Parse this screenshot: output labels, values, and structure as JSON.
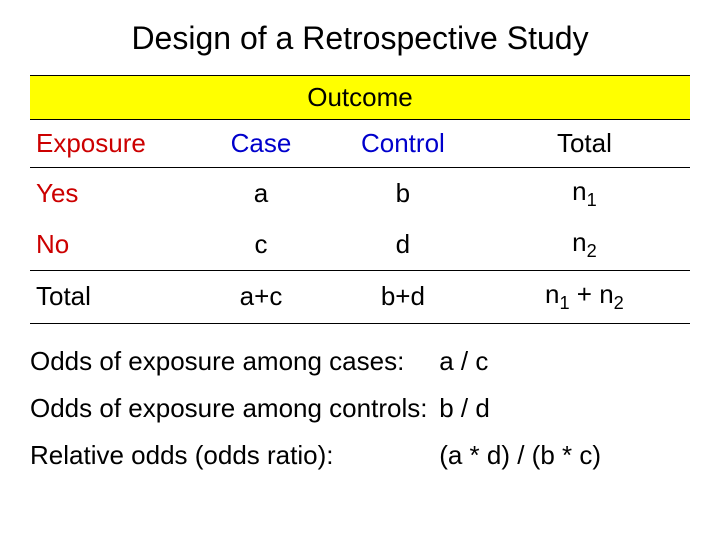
{
  "title": "Design of a Retrospective Study",
  "outcome_header": "Outcome",
  "headers": {
    "exposure": "Exposure",
    "case": "Case",
    "control": "Control",
    "total": "Total"
  },
  "rows": {
    "yes": {
      "label": "Yes",
      "case": "a",
      "control": "b",
      "total_base": "n",
      "total_sub": "1"
    },
    "no": {
      "label": "No",
      "case": "c",
      "control": "d",
      "total_base": "n",
      "total_sub": "2"
    }
  },
  "totals": {
    "label": "Total",
    "case": "a+c",
    "control": "b+d",
    "total_pre": "n",
    "total_sub1": "1",
    "total_mid": " + n",
    "total_sub2": "2"
  },
  "formulas": {
    "f1": {
      "label": "Odds of exposure among cases:",
      "value": "a / c"
    },
    "f2": {
      "label": "Odds of exposure among controls:",
      "value": "b / d"
    },
    "f3": {
      "label": "Relative odds (odds ratio):",
      "value": "(a * d) / (b * c)"
    }
  },
  "colors": {
    "highlight_bg": "#ffff00",
    "red": "#cc0000",
    "blue": "#0000cc",
    "text": "#000000",
    "background": "#ffffff"
  },
  "fontsize": {
    "title": 32,
    "body": 26
  }
}
